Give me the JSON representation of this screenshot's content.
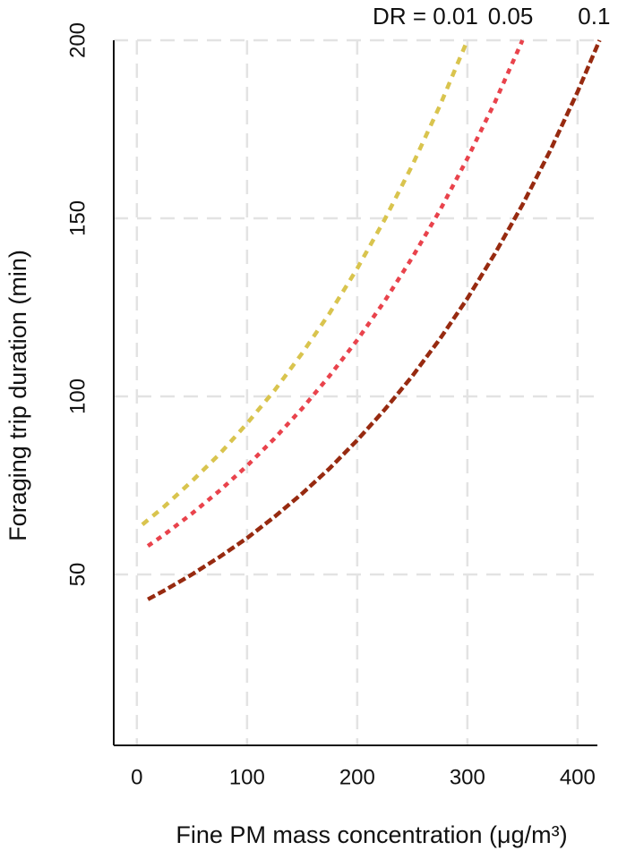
{
  "chart_data": {
    "type": "line",
    "xlabel": "Fine PM mass concentration (μg/m³)",
    "ylabel": "Foraging trip duration (min)",
    "xlim": [
      -21,
      418
    ],
    "ylim": [
      2,
      200
    ],
    "xticks": [
      0,
      100,
      200,
      300,
      400
    ],
    "yticks": [
      50,
      100,
      150,
      200
    ],
    "grid": true,
    "series": [
      {
        "name": "DR = 0.01",
        "color": "#d9c44e",
        "dash": "8 7",
        "x": [
          5,
          25,
          50,
          75,
          100,
          125,
          150,
          175,
          200,
          225,
          250,
          275,
          300
        ],
        "values": [
          64,
          69.1,
          76.2,
          83.8,
          92.4,
          101.7,
          112.1,
          123.4,
          135.9,
          149.7,
          164.9,
          181.6,
          200
        ]
      },
      {
        "name": "0.05",
        "color": "#e9434c",
        "dash": "6 6",
        "x": [
          10,
          25,
          50,
          75,
          100,
          125,
          150,
          175,
          200,
          225,
          250,
          275,
          300,
          325,
          350
        ],
        "values": [
          58,
          61.2,
          67.1,
          73.5,
          80.5,
          88.2,
          96.6,
          105.8,
          115.8,
          126.8,
          139.0,
          152.2,
          166.8,
          182.6,
          200
        ]
      },
      {
        "name": "0.1",
        "color": "#972a10",
        "dash": "9 4",
        "x": [
          10,
          25,
          50,
          75,
          100,
          125,
          150,
          175,
          200,
          225,
          250,
          275,
          300,
          325,
          350,
          375,
          400,
          420
        ],
        "values": [
          43,
          45.5,
          50.0,
          54.9,
          60.2,
          66.2,
          72.7,
          79.8,
          87.7,
          96.3,
          105.7,
          116.1,
          127.5,
          140.1,
          153.8,
          168.9,
          185.5,
          200
        ]
      }
    ]
  }
}
